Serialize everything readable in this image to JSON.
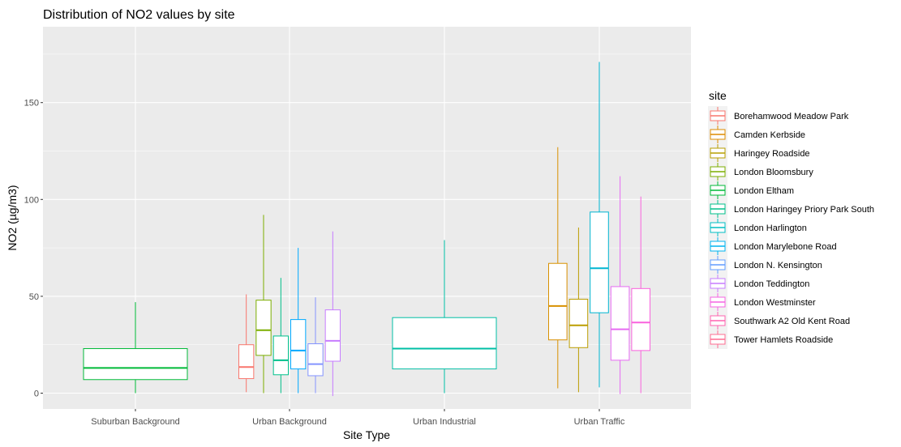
{
  "chart_data": {
    "type": "boxplot",
    "title": "Distribution of NO2 values by site",
    "xlabel": "Site Type",
    "ylabel": "NO2 (µg/m3)",
    "ylim": [
      -8,
      180
    ],
    "yticks": [
      0,
      50,
      100,
      150
    ],
    "grid": true,
    "legend": {
      "title": "site",
      "placement": "right"
    },
    "categories": [
      "Suburban Background",
      "Urban Background",
      "Urban Industrial",
      "Urban Traffic"
    ],
    "series": [
      {
        "name": "Borehamwood Meadow Park",
        "color": "#F8766D"
      },
      {
        "name": "Camden Kerbside",
        "color": "#DE8C00"
      },
      {
        "name": "Haringey Roadside",
        "color": "#B79F00"
      },
      {
        "name": "London Bloomsbury",
        "color": "#7CAE00"
      },
      {
        "name": "London Eltham",
        "color": "#00BA38"
      },
      {
        "name": "London Haringey Priory Park South",
        "color": "#00C08B"
      },
      {
        "name": "London Harlington",
        "color": "#00BFC4"
      },
      {
        "name": "London Marylebone Road",
        "color": "#00B4F0"
      },
      {
        "name": "London N. Kensington",
        "color": "#619CFF"
      },
      {
        "name": "London Teddington",
        "color": "#C77CFF"
      },
      {
        "name": "London Westminster",
        "color": "#F564E3"
      },
      {
        "name": "Southwark A2 Old Kent Road",
        "color": "#FF64B0"
      },
      {
        "name": "Tower Hamlets Roadside",
        "color": "#FF6C91"
      }
    ],
    "boxes": [
      {
        "category": "Suburban Background",
        "site": "London Eltham",
        "slot": 0,
        "slots": 1,
        "min": 0,
        "q1": 7,
        "median": 13,
        "q3": 23,
        "max": 47,
        "color": "#00BA38"
      },
      {
        "category": "Urban Background",
        "site": "Borehamwood Meadow Park",
        "slot": 0,
        "slots": 5,
        "min": 0.5,
        "q1": 7.5,
        "median": 13.5,
        "q3": 25,
        "max": 51,
        "color": "#F8766D"
      },
      {
        "category": "Urban Background",
        "site": "London Bloomsbury",
        "slot": 1,
        "slots": 5,
        "min": 0,
        "q1": 19.5,
        "median": 32.5,
        "q3": 48,
        "max": 92,
        "color": "#7CAE00"
      },
      {
        "category": "Urban Background",
        "site": "London Haringey Priory Park South",
        "slot": 2,
        "slots": 5,
        "min": 0,
        "q1": 9.5,
        "median": 17,
        "q3": 29.5,
        "max": 59.5,
        "color": "#00C08B"
      },
      {
        "category": "Urban Background",
        "site": "London N. Kensington",
        "slot": 3,
        "slots": 5,
        "min": 0,
        "q1": 12.5,
        "median": 22,
        "q3": 38,
        "max": 75,
        "color": "#00A9FF"
      },
      {
        "category": "Urban Background",
        "site": "London Teddington",
        "slot": 4,
        "slots": 5,
        "min": 0,
        "q1": 9,
        "median": 15,
        "q3": 25.5,
        "max": 49.5,
        "color": "#8494FF"
      },
      {
        "category": "Urban Background",
        "site": "London Westminster",
        "slot": 5,
        "slots": 5,
        "min": -1.5,
        "q1": 16.5,
        "median": 27,
        "q3": 43,
        "max": 83.5,
        "color": "#C77CFF"
      },
      {
        "category": "Urban Industrial",
        "site": "London Harlington",
        "slot": 0,
        "slots": 1,
        "min": 0,
        "q1": 12.5,
        "median": 23,
        "q3": 39,
        "max": 79,
        "color": "#00BFA5"
      },
      {
        "category": "Urban Traffic",
        "site": "Camden Kerbside",
        "slot": 0,
        "slots": 5,
        "min": 2.5,
        "q1": 27.5,
        "median": 45,
        "q3": 67,
        "max": 127,
        "color": "#D89000"
      },
      {
        "category": "Urban Traffic",
        "site": "Haringey Roadside",
        "slot": 1,
        "slots": 5,
        "min": 0.5,
        "q1": 23.5,
        "median": 35,
        "q3": 48.5,
        "max": 85.5,
        "color": "#BB9D00"
      },
      {
        "category": "Urban Traffic",
        "site": "London Marylebone Road",
        "slot": 2,
        "slots": 5,
        "min": 3,
        "q1": 41.5,
        "median": 64.5,
        "q3": 93.5,
        "max": 171,
        "color": "#00B5D1"
      },
      {
        "category": "Urban Traffic",
        "site": "Southwark A2 Old Kent Road",
        "slot": 3,
        "slots": 5,
        "min": -0.5,
        "q1": 17,
        "median": 33,
        "q3": 55,
        "max": 112,
        "color": "#E76BF3"
      },
      {
        "category": "Urban Traffic",
        "site": "Tower Hamlets Roadside",
        "slot": 4,
        "slots": 5,
        "min": 0,
        "q1": 22,
        "median": 36.5,
        "q3": 54,
        "max": 101.5,
        "color": "#F962DD"
      }
    ]
  }
}
